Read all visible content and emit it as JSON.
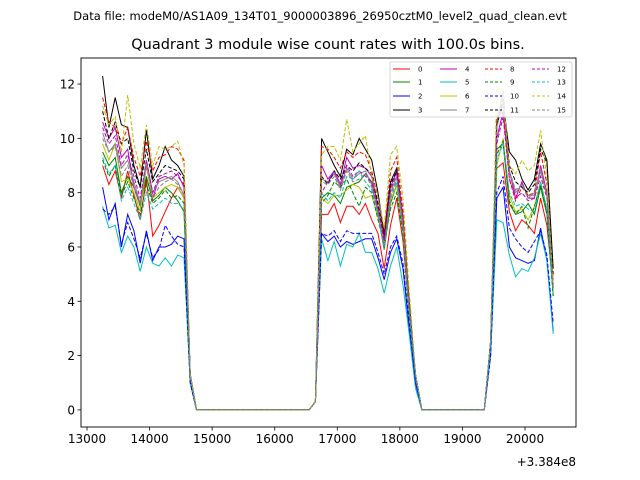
{
  "chart_data": {
    "type": "line",
    "suptitle": "Data file: modeM0/AS1A09_134T01_9000003896_26950cztM0_level2_quad_clean.evt",
    "title": "Quadrant 3 module wise count rates with 100.0s bins.",
    "xlabel": "",
    "ylabel": "",
    "x_offset_label": "+3.384e8",
    "xlim": [
      12904,
      20815
    ],
    "ylim": [
      -0.63,
      12.96
    ],
    "x_ticks": [
      13000,
      14000,
      15000,
      16000,
      17000,
      18000,
      19000,
      20000
    ],
    "x_tick_labels": [
      "13000",
      "14000",
      "15000",
      "16000",
      "17000",
      "18000",
      "19000",
      "20000"
    ],
    "y_ticks": [
      0,
      2,
      4,
      6,
      8,
      10,
      12
    ],
    "y_tick_labels": [
      "0",
      "2",
      "4",
      "6",
      "8",
      "10",
      "12"
    ],
    "grid": false,
    "legend_placement": "top-right",
    "legend_columns": 4,
    "x_step": 100,
    "segment_x_starts": [
      13250,
      16550,
      19350
    ],
    "series": [
      {
        "name": "0",
        "color": "#ff0000",
        "dash": false,
        "segments": [
          [
            9.0,
            8.3,
            8.8,
            7.8,
            8.8,
            7.9,
            7.0,
            8.5,
            6.4,
            6.8,
            7.3,
            7.8,
            8.2,
            7.8,
            1.3,
            0
          ],
          [
            0,
            0.3,
            7.2,
            7.2,
            7.6,
            6.9,
            7.5,
            7.5,
            7.2,
            7.6,
            7.0,
            6.5,
            5.2,
            6.8,
            7.8,
            6.2,
            3.5,
            1.3,
            0
          ],
          [
            0,
            2.5,
            8.9,
            9.1,
            7.3,
            6.6,
            7.0,
            6.8,
            6.5,
            7.8,
            6.8,
            4.5
          ]
        ]
      },
      {
        "name": "1",
        "color": "#008000",
        "dash": false,
        "segments": [
          [
            9.5,
            9.0,
            9.3,
            8.0,
            8.6,
            8.2,
            7.5,
            8.6,
            7.7,
            7.9,
            8.2,
            8.0,
            7.7,
            7.3,
            1.3,
            0
          ],
          [
            0,
            0.3,
            7.8,
            8.0,
            7.9,
            7.6,
            8.2,
            8.3,
            8.4,
            8.7,
            8.4,
            7.2,
            5.9,
            7.6,
            8.3,
            6.6,
            3.6,
            1.3,
            0
          ],
          [
            0,
            2.5,
            9.6,
            9.8,
            7.6,
            7.2,
            7.3,
            7.6,
            7.2,
            8.2,
            7.2,
            4.2
          ]
        ]
      },
      {
        "name": "2",
        "color": "#0000ff",
        "dash": false,
        "segments": [
          [
            8.2,
            7.0,
            7.6,
            6.0,
            7.2,
            6.6,
            5.4,
            6.6,
            5.5,
            6.0,
            6.0,
            6.1,
            6.4,
            6.3,
            1.0,
            0
          ],
          [
            0,
            0.3,
            6.5,
            6.2,
            6.4,
            6.0,
            6.2,
            6.1,
            6.2,
            6.3,
            6.3,
            5.6,
            4.8,
            5.8,
            6.3,
            5.2,
            3.0,
            1.0,
            0
          ],
          [
            0,
            2.0,
            7.8,
            8.2,
            6.0,
            5.6,
            5.5,
            5.4,
            5.5,
            6.7,
            5.5,
            2.9
          ]
        ]
      },
      {
        "name": "3",
        "color": "#000000",
        "dash": false,
        "segments": [
          [
            12.3,
            10.4,
            11.5,
            10.5,
            10.4,
            9.0,
            8.2,
            10.3,
            8.5,
            9.0,
            9.7,
            9.2,
            9.0,
            8.6,
            1.3,
            0
          ],
          [
            0,
            0.3,
            10.0,
            9.5,
            9.0,
            8.6,
            9.6,
            9.4,
            10.0,
            9.6,
            9.2,
            8.0,
            6.5,
            8.4,
            8.9,
            7.0,
            4.0,
            1.3,
            0
          ],
          [
            0,
            2.5,
            10.5,
            11.3,
            9.5,
            9.2,
            8.5,
            8.1,
            8.5,
            9.8,
            9.2,
            5.2
          ]
        ]
      },
      {
        "name": "4",
        "color": "#bf00bf",
        "dash": false,
        "segments": [
          [
            10.6,
            10.0,
            10.4,
            9.3,
            9.6,
            8.2,
            7.6,
            9.0,
            7.8,
            8.5,
            8.6,
            8.5,
            8.7,
            8.2,
            1.3,
            0
          ],
          [
            0,
            0.3,
            9.0,
            8.5,
            8.8,
            8.3,
            9.3,
            8.9,
            9.0,
            8.9,
            8.6,
            7.5,
            6.3,
            8.2,
            8.8,
            7.1,
            3.8,
            1.3,
            0
          ],
          [
            0,
            2.5,
            10.0,
            11.0,
            8.8,
            7.8,
            8.4,
            7.8,
            7.8,
            9.0,
            8.0,
            4.6
          ]
        ]
      },
      {
        "name": "5",
        "color": "#00bfbf",
        "dash": false,
        "segments": [
          [
            7.5,
            6.7,
            6.8,
            5.8,
            6.4,
            6.0,
            5.1,
            6.0,
            5.4,
            5.3,
            5.6,
            5.3,
            5.7,
            5.6,
            1.0,
            0
          ],
          [
            0,
            0.3,
            6.3,
            5.5,
            6.2,
            5.3,
            6.1,
            6.0,
            6.5,
            5.8,
            5.8,
            5.2,
            4.3,
            5.3,
            6.0,
            4.6,
            2.8,
            0.8,
            0
          ],
          [
            0,
            2.0,
            7.0,
            6.9,
            5.7,
            4.9,
            5.2,
            5.1,
            5.6,
            6.5,
            5.5,
            2.8
          ]
        ]
      },
      {
        "name": "6",
        "color": "#bfbf00",
        "dash": false,
        "segments": [
          [
            9.8,
            9.2,
            9.8,
            8.4,
            8.5,
            8.0,
            7.3,
            9.0,
            7.8,
            8.0,
            8.2,
            8.3,
            8.2,
            7.8,
            1.3,
            0
          ],
          [
            0,
            0.3,
            7.8,
            7.6,
            7.9,
            7.9,
            8.1,
            8.3,
            8.2,
            7.8,
            7.9,
            7.1,
            6.1,
            7.7,
            8.3,
            6.5,
            3.5,
            1.3,
            0
          ],
          [
            0,
            2.5,
            9.0,
            10.0,
            7.9,
            7.3,
            7.4,
            7.0,
            7.5,
            8.4,
            7.4,
            4.3
          ]
        ]
      },
      {
        "name": "7",
        "color": "#808080",
        "dash": false,
        "segments": [
          [
            10.2,
            9.5,
            9.8,
            8.9,
            9.2,
            8.4,
            7.6,
            9.2,
            8.0,
            8.4,
            8.5,
            8.6,
            8.4,
            7.9,
            1.3,
            0
          ],
          [
            0,
            0.3,
            8.5,
            8.4,
            8.7,
            8.2,
            8.9,
            8.5,
            8.7,
            8.8,
            8.3,
            7.3,
            6.0,
            8.0,
            8.6,
            6.9,
            3.7,
            1.3,
            0
          ],
          [
            0,
            2.5,
            10.6,
            11.8,
            8.8,
            8.0,
            8.3,
            7.9,
            7.9,
            8.8,
            7.9,
            4.5
          ]
        ]
      },
      {
        "name": "8",
        "color": "#ff0000",
        "dash": true,
        "segments": [
          [
            11.5,
            10.6,
            10.4,
            9.8,
            10.4,
            9.3,
            8.6,
            9.9,
            8.8,
            9.3,
            9.4,
            9.7,
            9.6,
            9.2,
            1.3,
            0
          ],
          [
            0,
            0.3,
            9.7,
            9.6,
            9.3,
            8.9,
            9.5,
            9.3,
            9.5,
            9.4,
            8.8,
            7.8,
            6.4,
            8.8,
            9.3,
            7.3,
            4.0,
            1.3,
            0
          ],
          [
            0,
            2.5,
            10.8,
            11.0,
            8.5,
            7.7,
            8.2,
            7.9,
            8.0,
            9.5,
            8.3,
            4.8
          ]
        ]
      },
      {
        "name": "9",
        "color": "#008000",
        "dash": true,
        "segments": [
          [
            9.2,
            8.6,
            9.0,
            7.9,
            8.4,
            7.8,
            7.2,
            8.3,
            7.6,
            7.8,
            8.1,
            7.8,
            7.9,
            7.6,
            1.3,
            0
          ],
          [
            0,
            0.3,
            7.6,
            7.9,
            8.4,
            8.2,
            8.5,
            8.0,
            7.5,
            8.2,
            8.0,
            7.0,
            6.1,
            7.4,
            8.0,
            6.5,
            3.5,
            1.3,
            0
          ],
          [
            0,
            2.5,
            9.4,
            9.9,
            7.7,
            7.2,
            7.5,
            6.7,
            7.5,
            8.3,
            7.3,
            4.2
          ]
        ]
      },
      {
        "name": "10",
        "color": "#0000ff",
        "dash": true,
        "segments": [
          [
            7.4,
            7.2,
            7.5,
            6.1,
            6.9,
            6.3,
            5.6,
            6.5,
            5.6,
            5.9,
            6.8,
            6.4,
            6.1,
            6.0,
            1.0,
            0
          ],
          [
            0,
            0.3,
            6.5,
            6.4,
            6.6,
            6.2,
            6.6,
            6.5,
            6.5,
            6.5,
            6.5,
            5.8,
            5.0,
            6.0,
            6.4,
            5.4,
            3.2,
            1.0,
            0
          ],
          [
            0,
            2.0,
            8.0,
            8.6,
            6.7,
            6.3,
            6.0,
            5.8,
            6.2,
            6.6,
            5.7,
            3.2
          ]
        ]
      },
      {
        "name": "11",
        "color": "#000000",
        "dash": true,
        "segments": [
          [
            11.0,
            10.0,
            10.6,
            9.8,
            10.0,
            8.8,
            8.2,
            9.6,
            8.4,
            8.7,
            9.0,
            8.9,
            8.8,
            8.5,
            1.3,
            0
          ],
          [
            0,
            0.3,
            8.6,
            8.3,
            8.8,
            8.5,
            9.0,
            8.8,
            9.1,
            8.9,
            8.7,
            7.6,
            6.3,
            8.3,
            8.8,
            7.0,
            3.9,
            1.3,
            0
          ],
          [
            0,
            2.5,
            10.5,
            11.5,
            9.0,
            8.4,
            8.2,
            8.0,
            8.3,
            9.6,
            9.1,
            5.0
          ]
        ]
      },
      {
        "name": "12",
        "color": "#bf00bf",
        "dash": true,
        "segments": [
          [
            10.4,
            9.8,
            10.1,
            9.0,
            9.4,
            8.6,
            7.8,
            9.2,
            8.0,
            8.6,
            8.7,
            8.8,
            8.6,
            8.3,
            1.3,
            0
          ],
          [
            0,
            0.3,
            8.0,
            8.4,
            8.8,
            8.3,
            9.0,
            8.6,
            8.8,
            8.6,
            8.4,
            7.4,
            6.2,
            8.1,
            8.7,
            7.0,
            3.8,
            1.3,
            0
          ],
          [
            0,
            2.5,
            9.8,
            10.8,
            8.5,
            7.8,
            8.0,
            7.7,
            7.8,
            8.6,
            7.8,
            4.5
          ]
        ]
      },
      {
        "name": "13",
        "color": "#00bfbf",
        "dash": true,
        "segments": [
          [
            9.3,
            8.7,
            9.0,
            7.7,
            8.2,
            7.6,
            7.0,
            8.0,
            7.4,
            7.6,
            7.8,
            7.6,
            7.6,
            7.4,
            1.3,
            0
          ],
          [
            0,
            0.3,
            8.0,
            7.7,
            8.0,
            7.8,
            8.6,
            8.5,
            8.8,
            8.4,
            8.1,
            7.2,
            5.9,
            7.8,
            8.4,
            6.7,
            3.6,
            1.3,
            0
          ],
          [
            0,
            2.5,
            9.2,
            9.8,
            8.0,
            7.5,
            7.6,
            7.4,
            7.3,
            8.4,
            7.4,
            4.3
          ]
        ]
      },
      {
        "name": "14",
        "color": "#bfbf00",
        "dash": true,
        "segments": [
          [
            11.2,
            10.5,
            10.8,
            9.5,
            11.6,
            9.8,
            8.9,
            10.5,
            9.0,
            9.7,
            9.6,
            9.7,
            9.9,
            9.0,
            1.3,
            0
          ],
          [
            0,
            0.3,
            9.4,
            9.7,
            9.7,
            9.2,
            10.7,
            9.5,
            9.8,
            10.1,
            8.6,
            7.8,
            6.7,
            9.4,
            9.7,
            7.8,
            4.4,
            1.3,
            0
          ],
          [
            0,
            2.5,
            11.9,
            11.5,
            9.0,
            8.7,
            9.2,
            8.8,
            9.0,
            10.3,
            8.5,
            4.6
          ]
        ]
      },
      {
        "name": "15",
        "color": "#808080",
        "dash": true,
        "segments": [
          [
            10.0,
            9.5,
            9.7,
            8.6,
            9.0,
            8.2,
            7.5,
            9.0,
            7.8,
            8.2,
            8.4,
            8.5,
            8.3,
            7.9,
            1.3,
            0
          ],
          [
            0,
            0.3,
            8.4,
            8.3,
            8.6,
            8.1,
            8.8,
            8.4,
            8.5,
            8.7,
            8.2,
            7.3,
            6.0,
            7.9,
            8.5,
            6.8,
            3.7,
            1.3,
            0
          ],
          [
            0,
            2.5,
            10.4,
            11.4,
            8.8,
            8.1,
            8.3,
            7.8,
            8.0,
            8.9,
            7.9,
            4.5
          ]
        ]
      }
    ]
  }
}
